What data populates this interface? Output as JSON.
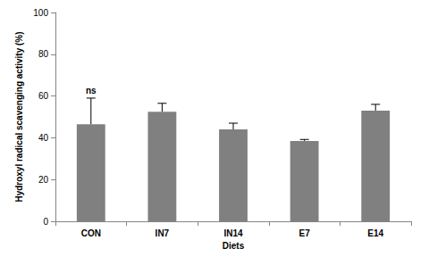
{
  "chart_data": {
    "type": "bar",
    "x_label": "Diets",
    "y_label": "Hydroxyl radical scavenging activity (%)",
    "categories": [
      "CON",
      "IN7",
      "IN14",
      "E7",
      "E14"
    ],
    "values": [
      46.5,
      52.5,
      44,
      38.5,
      53
    ],
    "errors": [
      12.5,
      4,
      3,
      0.7,
      3
    ],
    "color": "#808080",
    "ylim": [
      0,
      100
    ],
    "yticks": [
      0,
      20,
      40,
      60,
      80,
      100
    ],
    "grid": false,
    "annotations": [
      {
        "category": "CON",
        "text": "ns"
      }
    ]
  }
}
